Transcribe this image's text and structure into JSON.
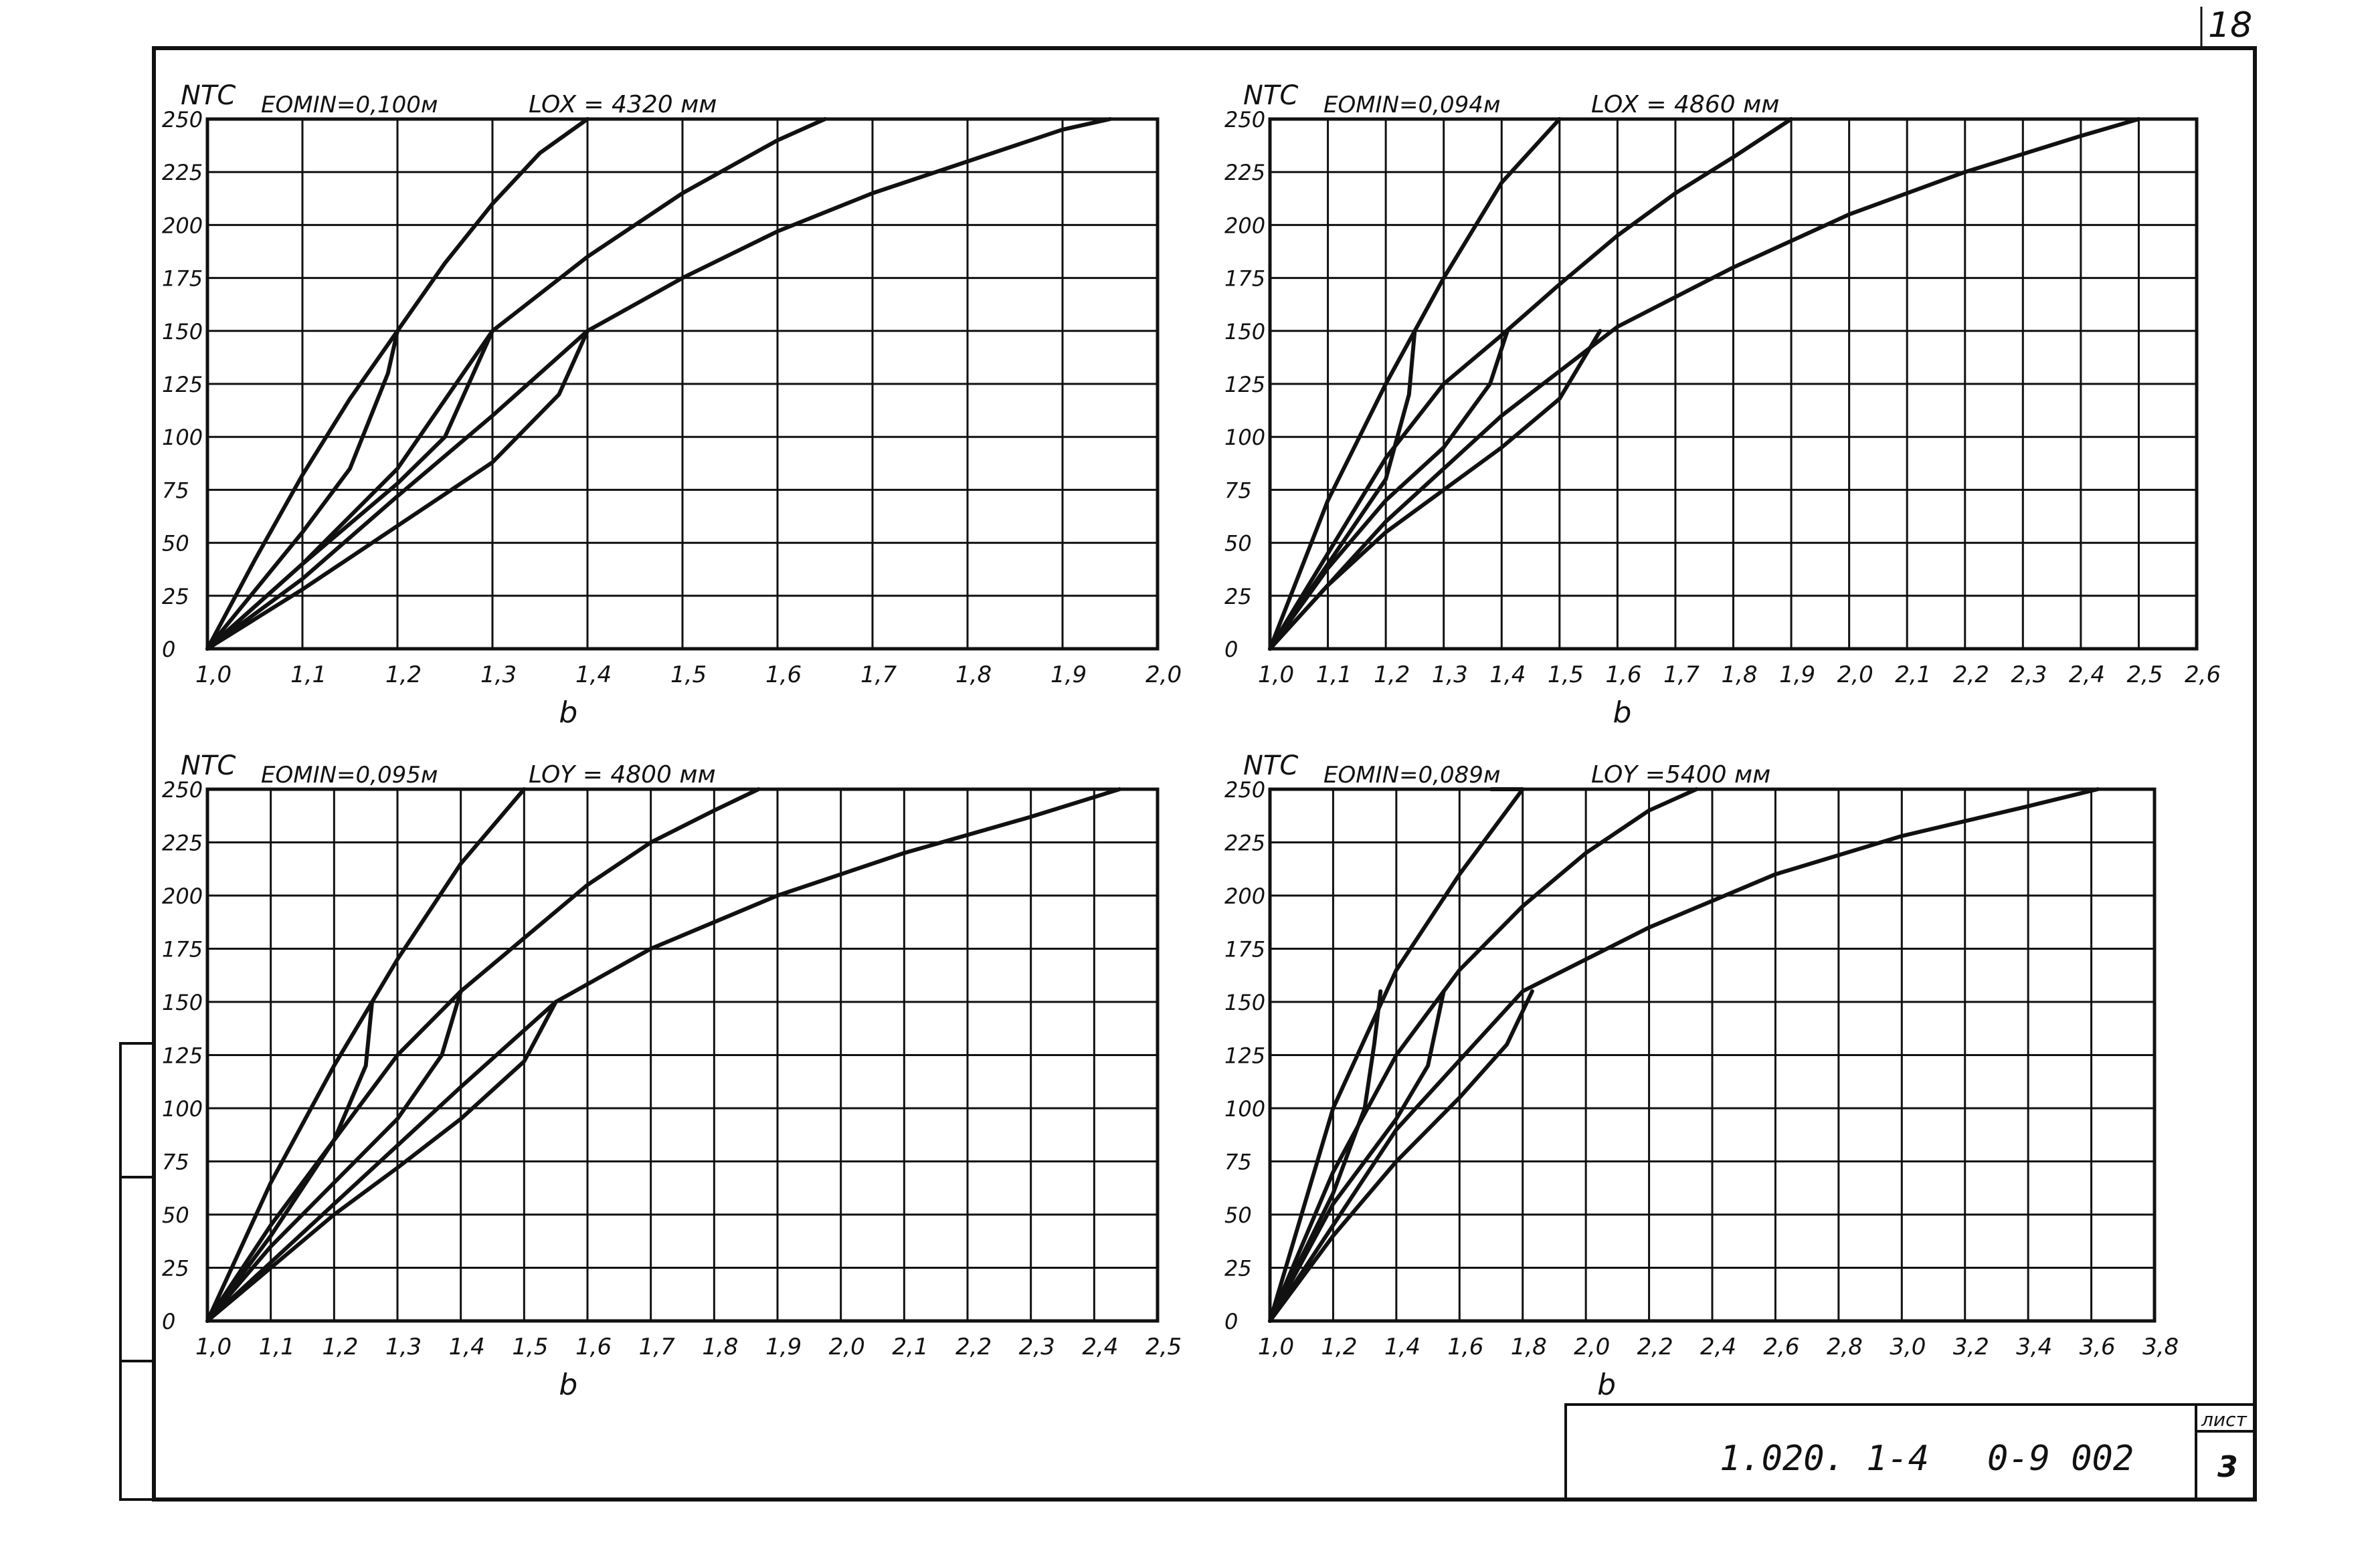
{
  "page": {
    "page_number": "18",
    "sheet_label": "лист",
    "sheet_number": "3",
    "doc_code": "1.020. 1-4",
    "doc_number": "0-9 002"
  },
  "chart_data": [
    {
      "type": "line",
      "ylabel": "NTC",
      "xlabel": "b",
      "emin_label": "EOMIN=0,100м",
      "lo_label": "LOX = 4320 мм",
      "x_ticks": [
        "1,0",
        "1,1",
        "1,2",
        "1,3",
        "1,4",
        "1,5",
        "1,6",
        "1,7",
        "1,8",
        "1,9",
        "2,0"
      ],
      "y_ticks": [
        "0",
        "25",
        "50",
        "75",
        "100",
        "125",
        "150",
        "175",
        "200",
        "225",
        "250"
      ],
      "xlim": [
        1.0,
        2.0
      ],
      "ylim": [
        0,
        250
      ],
      "grid": true,
      "series": [
        {
          "x": [
            1.0,
            1.05,
            1.1,
            1.15,
            1.2,
            1.25,
            1.3,
            1.35,
            1.4
          ],
          "y": [
            0,
            42,
            82,
            118,
            150,
            182,
            210,
            234,
            250
          ]
        },
        {
          "x": [
            1.0,
            1.1,
            1.2,
            1.3,
            1.4,
            1.5,
            1.6,
            1.65
          ],
          "y": [
            0,
            40,
            85,
            150,
            185,
            215,
            240,
            250
          ]
        },
        {
          "x": [
            1.0,
            1.1,
            1.2,
            1.3,
            1.4,
            1.5,
            1.6,
            1.7,
            1.8,
            1.9,
            1.95
          ],
          "y": [
            0,
            33,
            72,
            110,
            150,
            175,
            197,
            215,
            230,
            245,
            250
          ]
        },
        {
          "x": [
            1.0,
            1.1,
            1.15,
            1.19,
            1.2
          ],
          "y": [
            0,
            55,
            85,
            130,
            150
          ]
        },
        {
          "x": [
            1.0,
            1.1,
            1.2,
            1.25,
            1.3
          ],
          "y": [
            0,
            40,
            78,
            100,
            150
          ]
        },
        {
          "x": [
            1.0,
            1.1,
            1.2,
            1.3,
            1.37,
            1.4
          ],
          "y": [
            0,
            28,
            58,
            88,
            120,
            150
          ]
        }
      ]
    },
    {
      "type": "line",
      "ylabel": "NTC",
      "xlabel": "b",
      "emin_label": "EOMIN=0,094м",
      "lo_label": "LOX = 4860 мм",
      "x_ticks": [
        "1,0",
        "1,1",
        "1,2",
        "1,3",
        "1,4",
        "1,5",
        "1,6",
        "1,7",
        "1,8",
        "1,9",
        "2,0",
        "2,1",
        "2,2",
        "2,3",
        "2,4",
        "2,5",
        "2,6"
      ],
      "y_ticks": [
        "0",
        "25",
        "50",
        "75",
        "100",
        "125",
        "150",
        "175",
        "200",
        "225",
        "250"
      ],
      "xlim": [
        1.0,
        2.6
      ],
      "ylim": [
        0,
        250
      ],
      "grid": true,
      "series": [
        {
          "x": [
            1.0,
            1.1,
            1.2,
            1.3,
            1.4,
            1.5
          ],
          "y": [
            0,
            70,
            125,
            175,
            220,
            250
          ]
        },
        {
          "x": [
            1.0,
            1.1,
            1.2,
            1.3,
            1.4,
            1.5,
            1.6,
            1.7,
            1.8,
            1.9
          ],
          "y": [
            0,
            45,
            90,
            125,
            148,
            172,
            195,
            215,
            232,
            250
          ]
        },
        {
          "x": [
            1.0,
            1.2,
            1.4,
            1.6,
            1.8,
            2.0,
            2.2,
            2.4,
            2.5
          ],
          "y": [
            0,
            60,
            110,
            152,
            180,
            205,
            225,
            242,
            250
          ]
        },
        {
          "x": [
            1.0,
            1.1,
            1.2,
            1.24,
            1.25
          ],
          "y": [
            0,
            40,
            80,
            120,
            150
          ]
        },
        {
          "x": [
            1.0,
            1.1,
            1.2,
            1.3,
            1.38,
            1.41
          ],
          "y": [
            0,
            38,
            70,
            95,
            125,
            150
          ]
        },
        {
          "x": [
            1.0,
            1.1,
            1.2,
            1.3,
            1.4,
            1.5,
            1.57
          ],
          "y": [
            0,
            30,
            55,
            75,
            95,
            118,
            150
          ]
        }
      ]
    },
    {
      "type": "line",
      "ylabel": "NTC",
      "xlabel": "b",
      "emin_label": "EOMIN=0,095м",
      "lo_label": "LOY = 4800 мм",
      "x_ticks": [
        "1,0",
        "1,1",
        "1,2",
        "1,3",
        "1,4",
        "1,5",
        "1,6",
        "1,7",
        "1,8",
        "1,9",
        "2,0",
        "2,1",
        "2,2",
        "2,3",
        "2,4",
        "2,5"
      ],
      "y_ticks": [
        "0",
        "25",
        "50",
        "75",
        "100",
        "125",
        "150",
        "175",
        "200",
        "225",
        "250"
      ],
      "xlim": [
        1.0,
        2.5
      ],
      "ylim": [
        0,
        250
      ],
      "grid": true,
      "series": [
        {
          "x": [
            1.0,
            1.1,
            1.2,
            1.3,
            1.4,
            1.5
          ],
          "y": [
            0,
            65,
            120,
            170,
            215,
            250
          ]
        },
        {
          "x": [
            1.0,
            1.1,
            1.2,
            1.3,
            1.4,
            1.5,
            1.6,
            1.7,
            1.8,
            1.87
          ],
          "y": [
            0,
            45,
            85,
            125,
            155,
            180,
            205,
            225,
            240,
            250
          ]
        },
        {
          "x": [
            1.0,
            1.2,
            1.4,
            1.55,
            1.7,
            1.9,
            2.1,
            2.3,
            2.44
          ],
          "y": [
            0,
            55,
            110,
            150,
            175,
            200,
            220,
            237,
            250
          ]
        },
        {
          "x": [
            1.0,
            1.1,
            1.2,
            1.25,
            1.26
          ],
          "y": [
            0,
            40,
            85,
            120,
            150
          ]
        },
        {
          "x": [
            1.0,
            1.1,
            1.2,
            1.3,
            1.37,
            1.4
          ],
          "y": [
            0,
            35,
            65,
            95,
            125,
            155
          ]
        },
        {
          "x": [
            1.0,
            1.1,
            1.2,
            1.3,
            1.4,
            1.5,
            1.55
          ],
          "y": [
            0,
            25,
            50,
            72,
            95,
            122,
            150
          ]
        }
      ]
    },
    {
      "type": "line",
      "ylabel": "NTC",
      "xlabel": "b",
      "emin_label": "EOMIN=0,089м",
      "lo_label": "LOY =5400 мм",
      "x_ticks": [
        "1,0",
        "1,2",
        "1,4",
        "1,6",
        "1,8",
        "2,0",
        "2,2",
        "2,4",
        "2,6",
        "2,8",
        "3,0",
        "3,2",
        "3,4",
        "3,6",
        "3,8"
      ],
      "y_ticks": [
        "0",
        "25",
        "50",
        "75",
        "100",
        "125",
        "150",
        "175",
        "200",
        "225",
        "250"
      ],
      "xlim": [
        1.0,
        3.8
      ],
      "ylim": [
        0,
        250
      ],
      "grid": true,
      "series": [
        {
          "x": [
            1.0,
            1.2,
            1.4,
            1.6,
            1.8,
            1.7
          ],
          "y": [
            0,
            100,
            165,
            210,
            250,
            250
          ]
        },
        {
          "x": [
            1.0,
            1.2,
            1.4,
            1.6,
            1.8,
            2.0,
            2.2,
            2.35
          ],
          "y": [
            0,
            70,
            125,
            165,
            195,
            220,
            240,
            250
          ]
        },
        {
          "x": [
            1.0,
            1.4,
            1.8,
            2.2,
            2.6,
            3.0,
            3.4,
            3.62
          ],
          "y": [
            0,
            90,
            155,
            185,
            210,
            228,
            242,
            250
          ]
        },
        {
          "x": [
            1.0,
            1.2,
            1.3,
            1.33,
            1.35
          ],
          "y": [
            0,
            60,
            100,
            130,
            155
          ]
        },
        {
          "x": [
            1.0,
            1.2,
            1.4,
            1.5,
            1.55
          ],
          "y": [
            0,
            55,
            95,
            120,
            155
          ]
        },
        {
          "x": [
            1.0,
            1.2,
            1.4,
            1.6,
            1.75,
            1.83
          ],
          "y": [
            0,
            40,
            75,
            105,
            130,
            155
          ]
        }
      ]
    }
  ]
}
